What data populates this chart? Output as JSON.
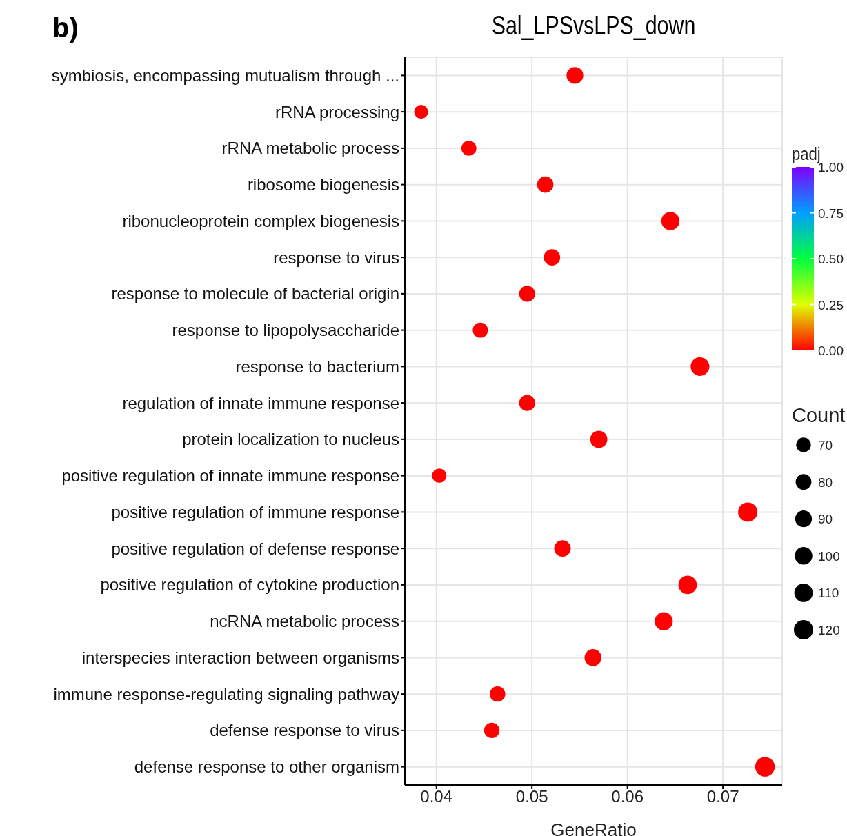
{
  "chart_data": {
    "type": "bubble",
    "title": "Sal_LPSvsLPS_down",
    "xlabel": "GeneRatio",
    "annotations": [
      "b)"
    ],
    "clabel": "padj",
    "legend_title": "Count",
    "orientation": "horizontal",
    "categories": [
      "symbiosis, encompassing mutualism through ...",
      "rRNA processing",
      "rRNA metabolic process",
      "ribosome biogenesis",
      "ribonucleoprotein complex biogenesis",
      "response to virus",
      "response to molecule of bacterial origin",
      "response to lipopolysaccharide",
      "response to bacterium",
      "regulation of innate immune response",
      "protein localization to nucleus",
      "positive regulation of innate immune response",
      "positive regulation of immune response",
      "positive regulation of defense response",
      "positive regulation of cytokine production",
      "ncRNA metabolic process",
      "interspecies interaction between organisms",
      "immune response-regulating signaling pathway",
      "defense response to virus",
      "defense response to other organism"
    ],
    "values": [
      0.0545,
      0.0384,
      0.0434,
      0.0514,
      0.0645,
      0.0521,
      0.0495,
      0.0446,
      0.0676,
      0.0495,
      0.057,
      0.0403,
      0.0726,
      0.0532,
      0.0663,
      0.0638,
      0.0564,
      0.0464,
      0.0458,
      0.0744
    ],
    "sizes": [
      90,
      63,
      72,
      85,
      106,
      86,
      82,
      74,
      112,
      82,
      94,
      66,
      120,
      88,
      109,
      105,
      93,
      77,
      76,
      123
    ],
    "size_legend": [
      70,
      80,
      90,
      100,
      110,
      120
    ],
    "cvalues": [
      0,
      0,
      0,
      0,
      0,
      0,
      0,
      0,
      0,
      0,
      0,
      0,
      0,
      0,
      0,
      0,
      0,
      0,
      0,
      0
    ],
    "clim": [
      0,
      1
    ],
    "cticks": [
      {
        "value": 0,
        "label": "0.00"
      },
      {
        "value": 0.25,
        "label": "0.25"
      },
      {
        "value": 0.5,
        "label": "0.50"
      },
      {
        "value": 0.75,
        "label": "0.75"
      },
      {
        "value": 1,
        "label": "1.00"
      }
    ],
    "xlim": [
      0.0367,
      0.0762
    ],
    "xticks": [
      0.04,
      0.05,
      0.06,
      0.07
    ],
    "grid": true,
    "marker": "circle"
  }
}
